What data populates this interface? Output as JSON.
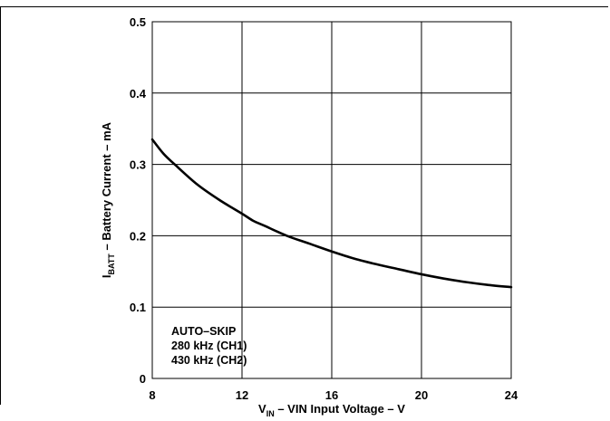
{
  "chart_data": {
    "type": "line",
    "title": "",
    "xlabel": {
      "sym": "V",
      "sub": "IN",
      "rest": " – VIN Input Voltage – V"
    },
    "ylabel": {
      "sym": "I",
      "sub": "BATT",
      "rest": " – Battery Current – mA"
    },
    "xlim": [
      8,
      24
    ],
    "ylim": [
      0,
      0.5
    ],
    "xticks": [
      8,
      12,
      16,
      20,
      24
    ],
    "xtick_labels": [
      "8",
      "12",
      "16",
      "20",
      "24"
    ],
    "yticks": [
      0,
      0.1,
      0.2,
      0.3,
      0.4,
      0.5
    ],
    "ytick_labels": [
      "0",
      "0.1",
      "0.2",
      "0.3",
      "0.4",
      "0.5"
    ],
    "grid": true,
    "annotation": [
      "AUTO–SKIP",
      "280 kHz  (CH1)",
      "430 kHz (CH2)"
    ],
    "series": [
      {
        "x": [
          8,
          8.5,
          9,
          10,
          11,
          12,
          12.5,
          13,
          14,
          15,
          16,
          17,
          18,
          19,
          20,
          21,
          22,
          23,
          24
        ],
        "y": [
          0.335,
          0.315,
          0.3,
          0.272,
          0.25,
          0.231,
          0.221,
          0.214,
          0.2,
          0.189,
          0.178,
          0.168,
          0.16,
          0.153,
          0.146,
          0.14,
          0.135,
          0.131,
          0.128
        ]
      }
    ]
  }
}
